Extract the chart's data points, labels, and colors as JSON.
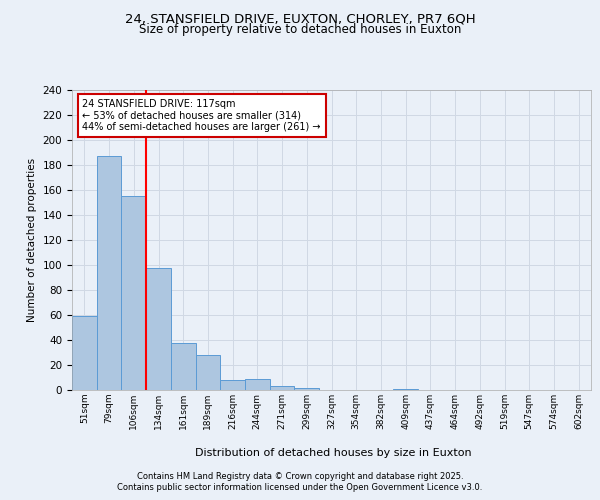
{
  "title_line1": "24, STANSFIELD DRIVE, EUXTON, CHORLEY, PR7 6QH",
  "title_line2": "Size of property relative to detached houses in Euxton",
  "xlabel": "Distribution of detached houses by size in Euxton",
  "ylabel": "Number of detached properties",
  "bin_labels": [
    "51sqm",
    "79sqm",
    "106sqm",
    "134sqm",
    "161sqm",
    "189sqm",
    "216sqm",
    "244sqm",
    "271sqm",
    "299sqm",
    "327sqm",
    "354sqm",
    "382sqm",
    "409sqm",
    "437sqm",
    "464sqm",
    "492sqm",
    "519sqm",
    "547sqm",
    "574sqm",
    "602sqm"
  ],
  "bar_values": [
    59,
    187,
    155,
    98,
    38,
    28,
    8,
    9,
    3,
    2,
    0,
    0,
    0,
    1,
    0,
    0,
    0,
    0,
    0,
    0,
    0
  ],
  "bar_color": "#adc6e0",
  "bar_edge_color": "#5b9bd5",
  "grid_color": "#d0d8e4",
  "background_color": "#eaf0f8",
  "red_line_x": 2.5,
  "annotation_text": "24 STANSFIELD DRIVE: 117sqm\n← 53% of detached houses are smaller (314)\n44% of semi-detached houses are larger (261) →",
  "annotation_box_color": "#ffffff",
  "annotation_box_edge": "#cc0000",
  "ylim": [
    0,
    240
  ],
  "yticks": [
    0,
    20,
    40,
    60,
    80,
    100,
    120,
    140,
    160,
    180,
    200,
    220,
    240
  ],
  "footer_line1": "Contains HM Land Registry data © Crown copyright and database right 2025.",
  "footer_line2": "Contains public sector information licensed under the Open Government Licence v3.0."
}
